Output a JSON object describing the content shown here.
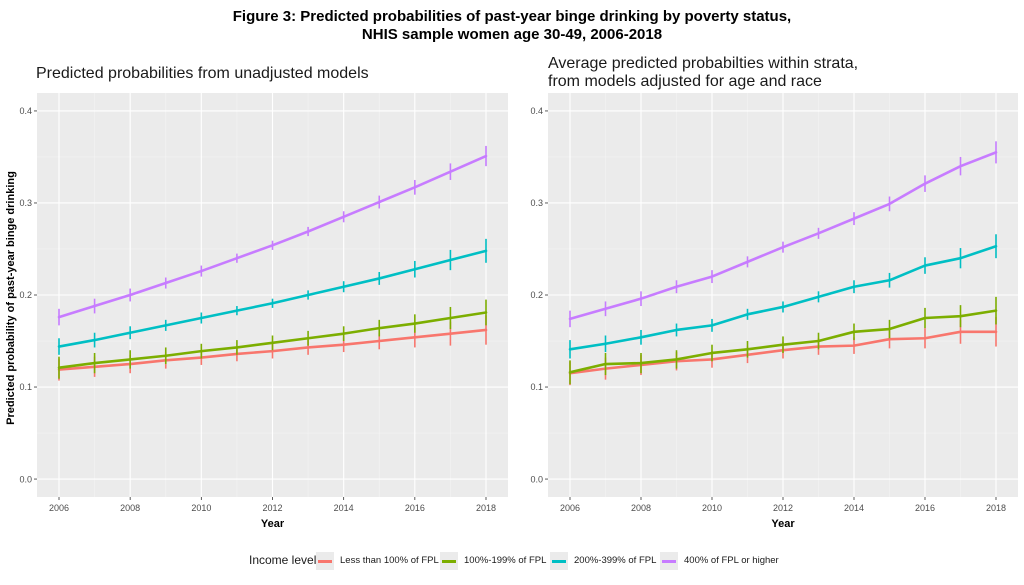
{
  "figure": {
    "title_line1": "Figure 3: Predicted probabilities of past-year binge drinking by poverty status,",
    "title_line2": "NHIS sample women age 30-49, 2006-2018"
  },
  "legend": {
    "title": "Income level",
    "items": [
      {
        "label": "Less than 100% of FPL",
        "color": "#F8766D"
      },
      {
        "label": "100%-199% of FPL",
        "color": "#7CAE00"
      },
      {
        "label": "200%-399% of FPL",
        "color": "#00BFC4"
      },
      {
        "label": "400% of FPL or higher",
        "color": "#C77CFF"
      }
    ]
  },
  "chart_data": [
    {
      "type": "line",
      "title": "Predicted probabilities from unadjusted models",
      "xlabel": "Year",
      "ylabel": "Predicted probability of past-year binge drinking",
      "xlim": [
        2006,
        2018
      ],
      "ylim": [
        0,
        0.4
      ],
      "x_ticks": [
        "2006",
        "2008",
        "2010",
        "2012",
        "2014",
        "2016",
        "2018"
      ],
      "y_ticks": [
        "0.0",
        "0.1",
        "0.2",
        "0.3",
        "0.4"
      ],
      "grid": true,
      "legend_position": "bottom",
      "x": [
        2006,
        2007,
        2008,
        2009,
        2010,
        2011,
        2012,
        2013,
        2014,
        2015,
        2016,
        2017,
        2018
      ],
      "series": [
        {
          "name": "Less than 100% of FPL",
          "color": "#F8766D",
          "values": [
            0.119,
            0.122,
            0.125,
            0.129,
            0.132,
            0.136,
            0.139,
            0.143,
            0.146,
            0.15,
            0.154,
            0.158,
            0.162
          ],
          "err": [
            0.012,
            0.011,
            0.01,
            0.009,
            0.008,
            0.008,
            0.008,
            0.008,
            0.008,
            0.009,
            0.011,
            0.013,
            0.016
          ]
        },
        {
          "name": "100%-199% of FPL",
          "color": "#7CAE00",
          "values": [
            0.121,
            0.126,
            0.13,
            0.134,
            0.139,
            0.143,
            0.148,
            0.153,
            0.158,
            0.164,
            0.169,
            0.175,
            0.181
          ],
          "err": [
            0.012,
            0.011,
            0.01,
            0.009,
            0.008,
            0.008,
            0.008,
            0.008,
            0.008,
            0.009,
            0.01,
            0.012,
            0.014
          ]
        },
        {
          "name": "200%-399% of FPL",
          "color": "#00BFC4",
          "values": [
            0.144,
            0.151,
            0.159,
            0.167,
            0.175,
            0.183,
            0.191,
            0.2,
            0.209,
            0.218,
            0.228,
            0.238,
            0.248
          ],
          "err": [
            0.009,
            0.008,
            0.007,
            0.006,
            0.006,
            0.005,
            0.005,
            0.005,
            0.006,
            0.007,
            0.009,
            0.011,
            0.013
          ]
        },
        {
          "name": "400% of FPL or higher",
          "color": "#C77CFF",
          "values": [
            0.176,
            0.188,
            0.2,
            0.213,
            0.226,
            0.24,
            0.254,
            0.269,
            0.285,
            0.301,
            0.317,
            0.334,
            0.351
          ],
          "err": [
            0.009,
            0.008,
            0.007,
            0.006,
            0.006,
            0.005,
            0.005,
            0.005,
            0.006,
            0.007,
            0.008,
            0.009,
            0.011
          ]
        }
      ]
    },
    {
      "type": "line",
      "title": "Average predicted probabilties within strata, from models adjusted for age and race",
      "title_lines": [
        "Average predicted probabilties within strata,",
        "from models adjusted for age and race"
      ],
      "xlabel": "Year",
      "ylabel": "",
      "xlim": [
        2006,
        2018
      ],
      "ylim": [
        0,
        0.4
      ],
      "x_ticks": [
        "2006",
        "2008",
        "2010",
        "2012",
        "2014",
        "2016",
        "2018"
      ],
      "y_ticks": [
        "0.0",
        "0.1",
        "0.2",
        "0.3",
        "0.4"
      ],
      "grid": true,
      "legend_position": "bottom",
      "x": [
        2006,
        2007,
        2008,
        2009,
        2010,
        2011,
        2012,
        2013,
        2014,
        2015,
        2016,
        2017,
        2018
      ],
      "series": [
        {
          "name": "Less than 100% of FPL",
          "color": "#F8766D",
          "values": [
            0.115,
            0.12,
            0.124,
            0.128,
            0.13,
            0.135,
            0.14,
            0.144,
            0.145,
            0.152,
            0.153,
            0.16,
            0.16
          ],
          "err": [
            0.013,
            0.012,
            0.011,
            0.01,
            0.009,
            0.009,
            0.009,
            0.009,
            0.009,
            0.01,
            0.011,
            0.013,
            0.016
          ]
        },
        {
          "name": "100%-199% of FPL",
          "color": "#7CAE00",
          "values": [
            0.116,
            0.125,
            0.126,
            0.13,
            0.137,
            0.141,
            0.146,
            0.15,
            0.16,
            0.163,
            0.175,
            0.177,
            0.183
          ],
          "err": [
            0.013,
            0.012,
            0.011,
            0.01,
            0.009,
            0.009,
            0.009,
            0.009,
            0.009,
            0.01,
            0.011,
            0.012,
            0.015
          ]
        },
        {
          "name": "200%-399% of FPL",
          "color": "#00BFC4",
          "values": [
            0.141,
            0.147,
            0.154,
            0.162,
            0.167,
            0.179,
            0.187,
            0.198,
            0.209,
            0.216,
            0.232,
            0.24,
            0.253
          ],
          "err": [
            0.01,
            0.009,
            0.008,
            0.007,
            0.007,
            0.006,
            0.006,
            0.006,
            0.007,
            0.008,
            0.009,
            0.011,
            0.013
          ]
        },
        {
          "name": "400% of FPL or higher",
          "color": "#C77CFF",
          "values": [
            0.174,
            0.185,
            0.196,
            0.209,
            0.22,
            0.236,
            0.252,
            0.267,
            0.283,
            0.299,
            0.321,
            0.34,
            0.355
          ],
          "err": [
            0.009,
            0.008,
            0.008,
            0.007,
            0.007,
            0.006,
            0.006,
            0.006,
            0.007,
            0.008,
            0.009,
            0.01,
            0.012
          ]
        }
      ]
    }
  ]
}
